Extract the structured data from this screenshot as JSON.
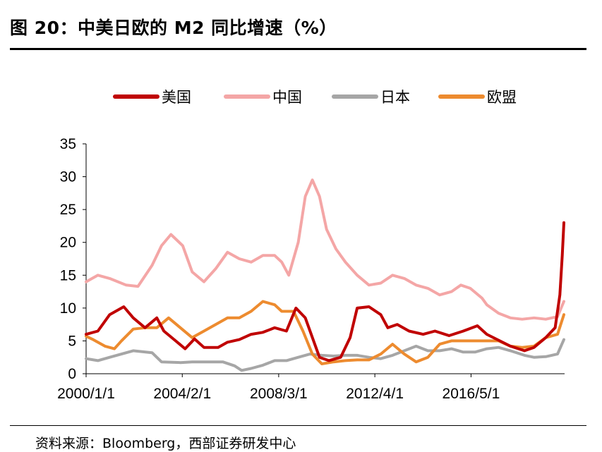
{
  "figure": {
    "title": "图 20：中美日欧的 M2 同比增速（%）",
    "source": "资料来源：Bloomberg，西部证券研发中心"
  },
  "chart_data": {
    "type": "line",
    "title": "中美日欧的 M2 同比增速（%）",
    "xlabel": "",
    "ylabel": "",
    "ylim": [
      0,
      35
    ],
    "yticks": [
      0,
      5,
      10,
      15,
      20,
      25,
      30,
      35
    ],
    "xlim": [
      2000.0,
      2020.3
    ],
    "xticks": [
      {
        "label": "2000/1/1",
        "x": 2000.0
      },
      {
        "label": "2004/2/1",
        "x": 2004.08
      },
      {
        "label": "2008/3/1",
        "x": 2008.17
      },
      {
        "label": "2012/4/1",
        "x": 2012.25
      },
      {
        "label": "2016/5/1",
        "x": 2016.33
      }
    ],
    "legend_position": "top",
    "grid": false,
    "series": [
      {
        "name": "美国",
        "color": "#c00000",
        "points": [
          [
            2000.0,
            6
          ],
          [
            2000.5,
            6.5
          ],
          [
            2001.0,
            9
          ],
          [
            2001.6,
            10.2
          ],
          [
            2002.0,
            8.5
          ],
          [
            2002.5,
            7
          ],
          [
            2003.0,
            8.5
          ],
          [
            2003.3,
            6.5
          ],
          [
            2003.8,
            5
          ],
          [
            2004.2,
            3.8
          ],
          [
            2004.6,
            5.3
          ],
          [
            2005.0,
            4
          ],
          [
            2005.6,
            4
          ],
          [
            2006.0,
            4.8
          ],
          [
            2006.5,
            5.2
          ],
          [
            2007.0,
            6
          ],
          [
            2007.5,
            6.3
          ],
          [
            2008.0,
            7
          ],
          [
            2008.5,
            6.5
          ],
          [
            2008.9,
            10
          ],
          [
            2009.3,
            8.5
          ],
          [
            2009.7,
            4.5
          ],
          [
            2009.9,
            2.5
          ],
          [
            2010.3,
            2
          ],
          [
            2010.8,
            2.5
          ],
          [
            2011.2,
            5.5
          ],
          [
            2011.5,
            10
          ],
          [
            2012.0,
            10.2
          ],
          [
            2012.5,
            9
          ],
          [
            2012.8,
            7
          ],
          [
            2013.2,
            7.5
          ],
          [
            2013.7,
            6.5
          ],
          [
            2014.3,
            6
          ],
          [
            2014.8,
            6.5
          ],
          [
            2015.4,
            5.8
          ],
          [
            2016.0,
            6.5
          ],
          [
            2016.6,
            7.3
          ],
          [
            2017.0,
            6
          ],
          [
            2017.5,
            5.1
          ],
          [
            2018.0,
            4.2
          ],
          [
            2018.6,
            3.5
          ],
          [
            2019.0,
            4
          ],
          [
            2019.5,
            5.5
          ],
          [
            2019.9,
            7
          ],
          [
            2020.1,
            12
          ],
          [
            2020.2,
            18
          ],
          [
            2020.27,
            23
          ]
        ]
      },
      {
        "name": "中国",
        "color": "#f4a6a6",
        "points": [
          [
            2000.0,
            14
          ],
          [
            2000.5,
            15
          ],
          [
            2001.0,
            14.5
          ],
          [
            2001.7,
            13.5
          ],
          [
            2002.2,
            13.3
          ],
          [
            2002.8,
            16.5
          ],
          [
            2003.2,
            19.5
          ],
          [
            2003.6,
            21.2
          ],
          [
            2004.1,
            19.5
          ],
          [
            2004.5,
            15.5
          ],
          [
            2005.0,
            14
          ],
          [
            2005.5,
            16
          ],
          [
            2006.0,
            18.5
          ],
          [
            2006.5,
            17.5
          ],
          [
            2007.0,
            17
          ],
          [
            2007.5,
            18
          ],
          [
            2008.0,
            18
          ],
          [
            2008.3,
            17
          ],
          [
            2008.6,
            15
          ],
          [
            2009.0,
            20
          ],
          [
            2009.3,
            27
          ],
          [
            2009.6,
            29.5
          ],
          [
            2009.9,
            27
          ],
          [
            2010.2,
            22
          ],
          [
            2010.6,
            19
          ],
          [
            2011.0,
            17
          ],
          [
            2011.5,
            15
          ],
          [
            2012.0,
            13.5
          ],
          [
            2012.5,
            13.8
          ],
          [
            2013.0,
            15
          ],
          [
            2013.5,
            14.5
          ],
          [
            2014.0,
            13.5
          ],
          [
            2014.5,
            13
          ],
          [
            2015.0,
            12
          ],
          [
            2015.5,
            12.5
          ],
          [
            2015.9,
            13.5
          ],
          [
            2016.3,
            13
          ],
          [
            2016.8,
            11.5
          ],
          [
            2017.0,
            10.5
          ],
          [
            2017.5,
            9.2
          ],
          [
            2018.0,
            8.5
          ],
          [
            2018.5,
            8.3
          ],
          [
            2019.0,
            8.5
          ],
          [
            2019.5,
            8.3
          ],
          [
            2020.0,
            8.7
          ],
          [
            2020.27,
            11
          ]
        ]
      },
      {
        "name": "日本",
        "color": "#a6a6a6",
        "points": [
          [
            2000.0,
            2.3
          ],
          [
            2000.5,
            2
          ],
          [
            2001.0,
            2.5
          ],
          [
            2001.5,
            3
          ],
          [
            2002.0,
            3.5
          ],
          [
            2002.8,
            3.2
          ],
          [
            2003.2,
            1.8
          ],
          [
            2004.0,
            1.7
          ],
          [
            2004.5,
            1.8
          ],
          [
            2005.0,
            1.8
          ],
          [
            2005.8,
            1.8
          ],
          [
            2006.3,
            1.2
          ],
          [
            2006.6,
            0.5
          ],
          [
            2007.0,
            0.8
          ],
          [
            2007.5,
            1.3
          ],
          [
            2008.0,
            2
          ],
          [
            2008.5,
            2
          ],
          [
            2009.0,
            2.5
          ],
          [
            2009.5,
            3
          ],
          [
            2010.0,
            2.8
          ],
          [
            2010.5,
            2.7
          ],
          [
            2011.0,
            2.8
          ],
          [
            2011.5,
            2.8
          ],
          [
            2012.0,
            2.5
          ],
          [
            2012.5,
            2.3
          ],
          [
            2013.0,
            2.8
          ],
          [
            2013.5,
            3.5
          ],
          [
            2014.0,
            4.2
          ],
          [
            2014.5,
            3.5
          ],
          [
            2015.0,
            3.5
          ],
          [
            2015.5,
            3.8
          ],
          [
            2016.0,
            3.3
          ],
          [
            2016.5,
            3.3
          ],
          [
            2017.0,
            3.8
          ],
          [
            2017.5,
            4
          ],
          [
            2018.0,
            3.5
          ],
          [
            2018.6,
            2.8
          ],
          [
            2019.0,
            2.5
          ],
          [
            2019.5,
            2.6
          ],
          [
            2020.0,
            3
          ],
          [
            2020.27,
            5.2
          ]
        ]
      },
      {
        "name": "欧盟",
        "color": "#ed8b2f",
        "points": [
          [
            2000.0,
            5.7
          ],
          [
            2000.3,
            5.2
          ],
          [
            2000.8,
            4.2
          ],
          [
            2001.2,
            3.8
          ],
          [
            2001.5,
            5
          ],
          [
            2002.0,
            6.8
          ],
          [
            2002.5,
            7
          ],
          [
            2003.0,
            7
          ],
          [
            2003.5,
            8.5
          ],
          [
            2004.0,
            7
          ],
          [
            2004.5,
            5.5
          ],
          [
            2005.0,
            6.5
          ],
          [
            2005.5,
            7.5
          ],
          [
            2006.0,
            8.5
          ],
          [
            2006.5,
            8.5
          ],
          [
            2007.0,
            9.5
          ],
          [
            2007.5,
            11
          ],
          [
            2008.0,
            10.5
          ],
          [
            2008.3,
            9.5
          ],
          [
            2008.8,
            9.5
          ],
          [
            2009.2,
            6.5
          ],
          [
            2009.6,
            3
          ],
          [
            2010.0,
            1.5
          ],
          [
            2010.5,
            1.8
          ],
          [
            2011.0,
            2
          ],
          [
            2011.5,
            2.1
          ],
          [
            2012.0,
            2.1
          ],
          [
            2012.5,
            3
          ],
          [
            2013.0,
            4.5
          ],
          [
            2013.5,
            3
          ],
          [
            2014.0,
            1.8
          ],
          [
            2014.5,
            2.5
          ],
          [
            2015.0,
            4.5
          ],
          [
            2015.5,
            5
          ],
          [
            2016.0,
            5
          ],
          [
            2016.5,
            5
          ],
          [
            2017.0,
            5
          ],
          [
            2017.5,
            5
          ],
          [
            2018.0,
            4.2
          ],
          [
            2018.5,
            4
          ],
          [
            2019.0,
            4.2
          ],
          [
            2019.5,
            5.5
          ],
          [
            2020.0,
            6
          ],
          [
            2020.27,
            9
          ]
        ]
      }
    ]
  }
}
